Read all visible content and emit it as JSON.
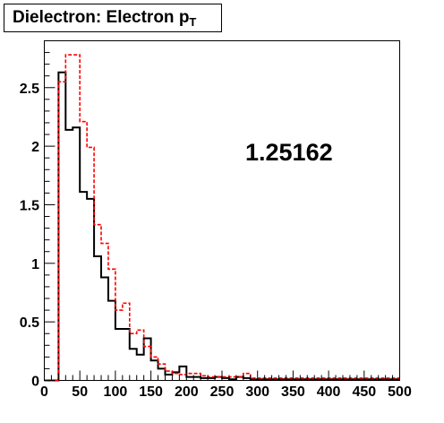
{
  "chart_data": {
    "type": "step-histogram",
    "title": "Dielectron: Electron p",
    "title_subscript": "T",
    "xlabel": "",
    "ylabel": "",
    "xlim": [
      0,
      500
    ],
    "ylim": [
      0,
      2.9
    ],
    "x_ticks": [
      0,
      50,
      100,
      150,
      200,
      250,
      300,
      350,
      400,
      450,
      500
    ],
    "x_tick_labels": [
      "0",
      "50",
      "100",
      "150",
      "200",
      "250",
      "300",
      "350",
      "400",
      "450",
      "500"
    ],
    "y_ticks": [
      0,
      0.5,
      1,
      1.5,
      2,
      2.5
    ],
    "y_tick_labels": [
      "0",
      "0.5",
      "1",
      "1.5",
      "2",
      "2.5"
    ],
    "grid": false,
    "annotation": "1.25162",
    "bin_width": 10,
    "bin_edges_start": 0,
    "series": [
      {
        "color": "#000000",
        "style": "solid",
        "values": [
          0,
          0,
          2.63,
          2.14,
          2.16,
          1.61,
          1.55,
          1.06,
          0.88,
          0.68,
          0.44,
          0.44,
          0.27,
          0.22,
          0.36,
          0.17,
          0.1,
          0.05,
          0.07,
          0.12,
          0.03,
          0.03,
          0.02,
          0.02,
          0.03,
          0.02,
          0.01,
          0.03,
          0.02,
          0.01,
          0.01,
          0.01,
          0.01,
          0.01,
          0.01,
          0.01,
          0.01,
          0.01,
          0.01,
          0.01,
          0.01,
          0.01,
          0.01,
          0.01,
          0.01,
          0.01,
          0.01,
          0.01,
          0.01,
          0.01
        ]
      },
      {
        "color": "#ff0000",
        "style": "dashed",
        "values": [
          0,
          0,
          2.55,
          2.78,
          2.78,
          2.21,
          1.99,
          1.33,
          1.17,
          0.95,
          0.6,
          0.66,
          0.4,
          0.43,
          0.29,
          0.2,
          0.14,
          0.08,
          0.06,
          0.05,
          0.06,
          0.06,
          0.04,
          0.03,
          0.03,
          0.03,
          0.03,
          0.03,
          0.06,
          0.02,
          0.02,
          0.02,
          0.02,
          0.02,
          0.02,
          0.02,
          0.02,
          0.02,
          0.02,
          0.02,
          0.02,
          0.02,
          0.02,
          0.02,
          0.02,
          0.02,
          0.02,
          0.02,
          0.02,
          0.02
        ]
      }
    ]
  }
}
